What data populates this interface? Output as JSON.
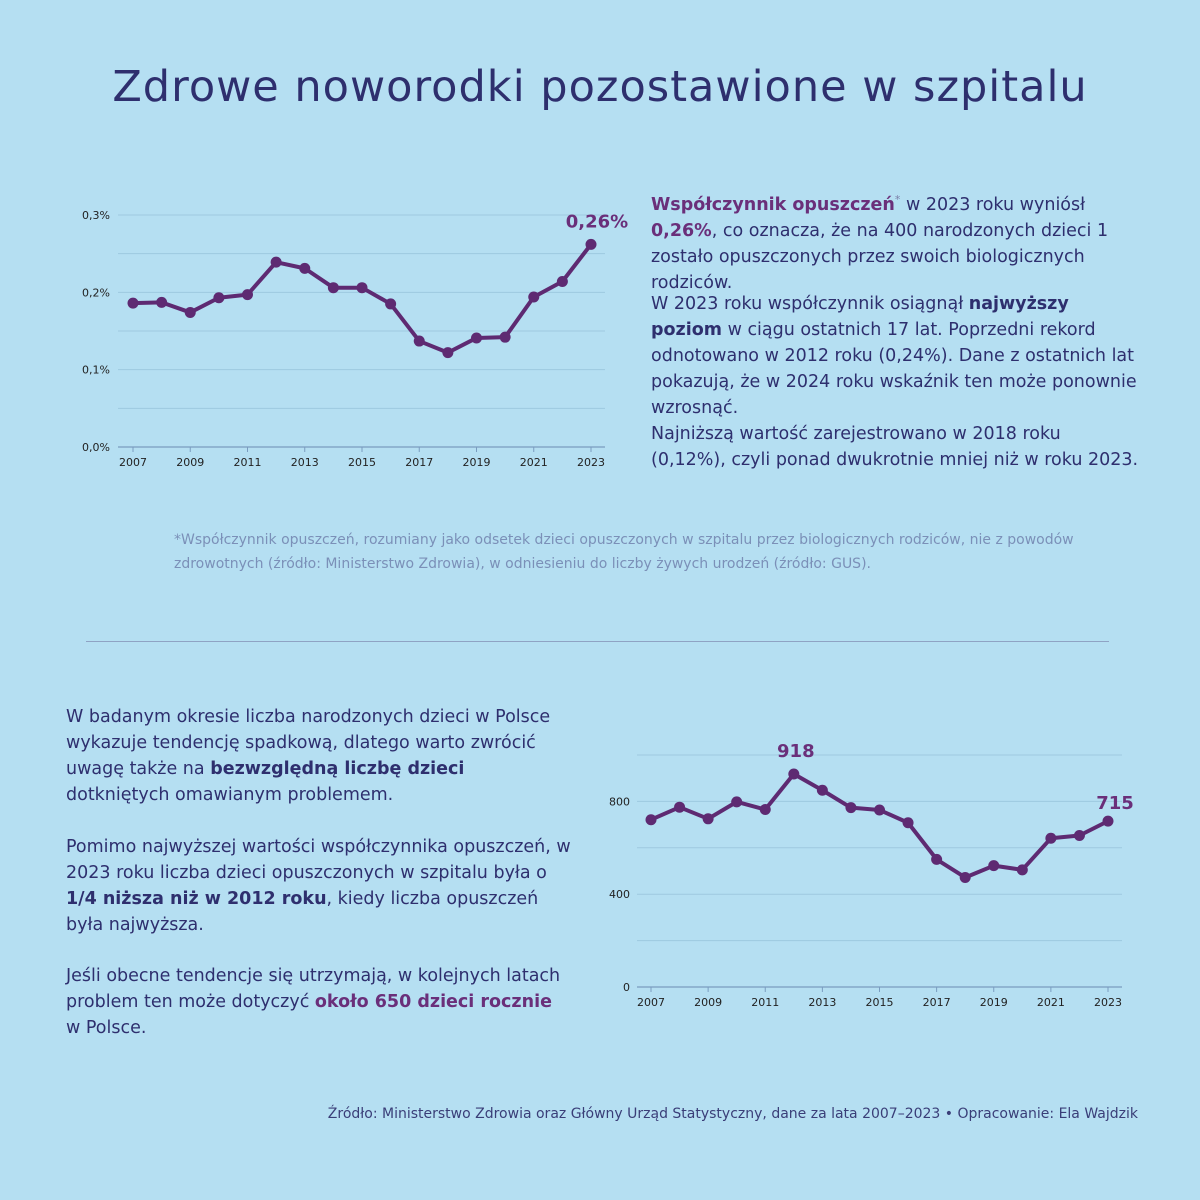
{
  "title": "Zdrowe noworodki pozostawione w szpitalu",
  "colors": {
    "background": "#b5dff2",
    "line": "#5e2a72",
    "text": "#2e2f6e",
    "accent": "#6a2f7a",
    "grid": "#9ec9e0"
  },
  "top_text": {
    "p1": {
      "term": "Współczynnik opuszczeń",
      "asterisk": "*",
      "mid": " w 2023 roku wyniósł ",
      "value": "0,26%",
      "rest": ", co oznacza, że na 400 narodzonych dzieci 1 zostało opuszczonych przez swoich biologicznych rodziców."
    },
    "p2": {
      "before": "W 2023 roku współczynnik osiągnął ",
      "highlight": "najwyższy poziom",
      "after": " w ciągu ostatnich 17 lat. Poprzedni rekord odnotowano w 2012 roku (0,24%). Dane z ostatnich lat pokazują, że w 2024 roku wskaźnik ten może ponownie wzrosnąć."
    },
    "p3": "Najniższą wartość zarejestrowano w 2018 roku (0,12%), czyli ponad dwukrotnie mniej niż w roku 2023."
  },
  "footnote": "*Współczynnik opuszczeń, rozumiany jako odsetek dzieci opuszczonych w szpitalu przez biologicznych rodziców, nie z powodów zdrowotnych (źródło: Ministerstwo Zdrowia), w odniesieniu do liczby żywych urodzeń (źródło: GUS).",
  "bottom_text": {
    "p1": {
      "before": "W badanym okresie liczba narodzonych dzieci w Polsce wykazuje tendencję spadkową, dlatego warto zwrócić uwagę także na ",
      "highlight": "bezwzględną liczbę dzieci",
      "after": " dotkniętych omawianym problemem."
    },
    "p2": {
      "before": "Pomimo najwyższej wartości współczynnika opuszczeń, w 2023 roku liczba dzieci opuszczonych w szpitalu była o ",
      "highlight": "1/4 niższa niż w 2012 roku",
      "after": ", kiedy liczba opuszczeń była najwyższa."
    },
    "p3": {
      "before": "Jeśli obecne tendencje się utrzymają, w kolejnych latach problem ten może dotyczyć ",
      "highlight": "około 650 dzieci rocznie",
      "after": " w Polsce."
    }
  },
  "source": "Źródło: Ministerstwo Zdrowia oraz Główny Urząd Statystyczny, dane za lata 2007–2023 • Opracowanie: Ela Wajdzik",
  "chart_data": [
    {
      "type": "line",
      "x": [
        2007,
        2008,
        2009,
        2010,
        2011,
        2012,
        2013,
        2014,
        2015,
        2016,
        2017,
        2018,
        2019,
        2020,
        2021,
        2022,
        2023
      ],
      "series": [
        {
          "values": [
            0.186,
            0.187,
            0.174,
            0.193,
            0.197,
            0.239,
            0.231,
            0.206,
            0.206,
            0.185,
            0.137,
            0.122,
            0.141,
            0.142,
            0.194,
            0.214,
            0.262
          ]
        }
      ],
      "ylim": [
        0,
        0.3
      ],
      "yticks": [
        0,
        0.1,
        0.2,
        0.3
      ],
      "ytick_labels": [
        "0,0%",
        "0,1%",
        "0,2%",
        "0,3%"
      ],
      "xticks": [
        2007,
        2009,
        2011,
        2013,
        2015,
        2017,
        2019,
        2021,
        2023
      ],
      "xtick_labels": [
        "2007",
        "2009",
        "2011",
        "2013",
        "2015",
        "2017",
        "2019",
        "2021",
        "2023"
      ],
      "grid": true,
      "annotations": [
        {
          "x": 2023,
          "label": "0,26%"
        }
      ]
    },
    {
      "type": "line",
      "x": [
        2007,
        2008,
        2009,
        2010,
        2011,
        2012,
        2013,
        2014,
        2015,
        2016,
        2017,
        2018,
        2019,
        2020,
        2021,
        2022,
        2023
      ],
      "series": [
        {
          "values": [
            721,
            775,
            725,
            798,
            765,
            918,
            848,
            773,
            763,
            708,
            550,
            472,
            523,
            505,
            641,
            653,
            715
          ]
        }
      ],
      "ylim": [
        0,
        1000
      ],
      "yticks": [
        0,
        400,
        800
      ],
      "ytick_labels": [
        "0",
        "400",
        "800"
      ],
      "xticks": [
        2007,
        2009,
        2011,
        2013,
        2015,
        2017,
        2019,
        2021,
        2023
      ],
      "xtick_labels": [
        "2007",
        "2009",
        "2011",
        "2013",
        "2015",
        "2017",
        "2019",
        "2021",
        "2023"
      ],
      "grid": true,
      "annotations": [
        {
          "x": 2012,
          "label": "918"
        },
        {
          "x": 2023,
          "label": "715"
        }
      ]
    }
  ]
}
